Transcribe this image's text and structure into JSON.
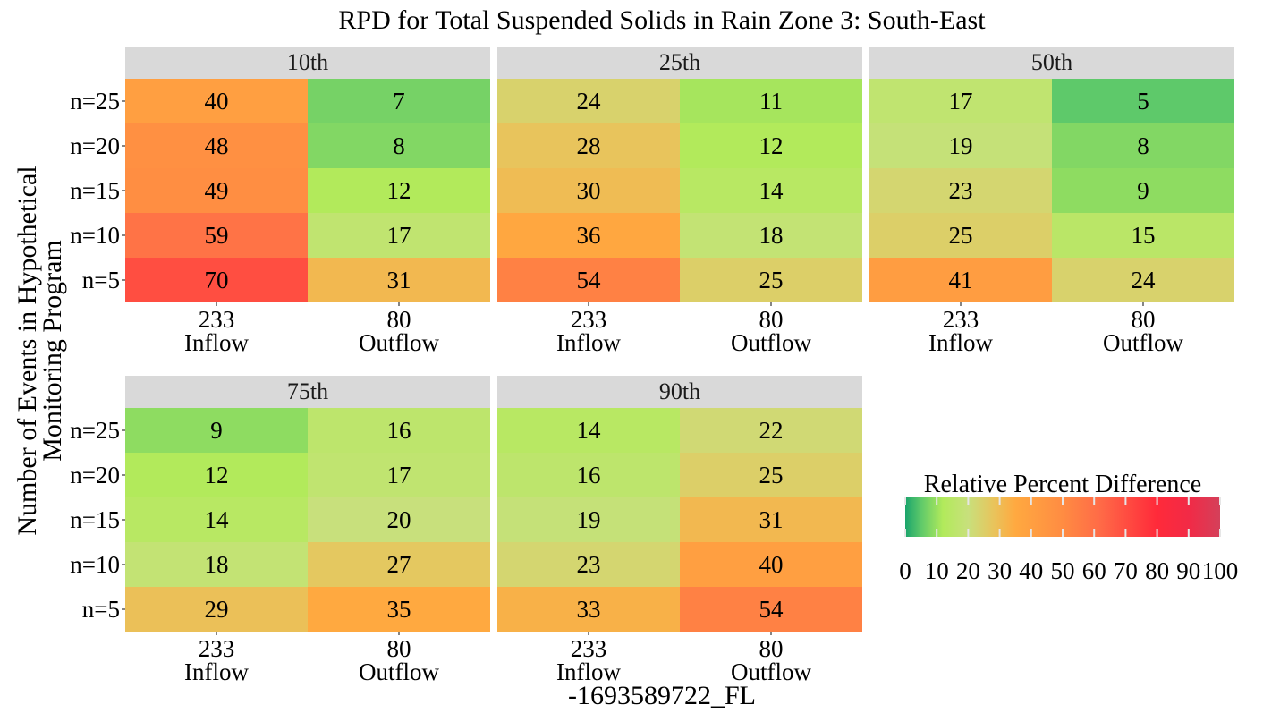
{
  "chart_data": {
    "type": "heatmap",
    "title": "RPD for Total Suspended Solids in Rain Zone 3: South-East",
    "xlabel": "-1693589722_FL",
    "ylabel_lines": [
      "Number of Events in Hypothetical",
      "Monitoring Program"
    ],
    "y_categories": [
      "n=25",
      "n=20",
      "n=15",
      "n=10",
      "n=5"
    ],
    "x_categories": [
      {
        "count": "233",
        "label": "Inflow"
      },
      {
        "count": "80",
        "label": "Outflow"
      }
    ],
    "facets": [
      {
        "label": "10th",
        "values": [
          [
            40,
            7
          ],
          [
            48,
            8
          ],
          [
            49,
            12
          ],
          [
            59,
            17
          ],
          [
            70,
            31
          ]
        ]
      },
      {
        "label": "25th",
        "values": [
          [
            24,
            11
          ],
          [
            28,
            12
          ],
          [
            30,
            14
          ],
          [
            36,
            18
          ],
          [
            54,
            25
          ]
        ]
      },
      {
        "label": "50th",
        "values": [
          [
            17,
            5
          ],
          [
            19,
            8
          ],
          [
            23,
            9
          ],
          [
            25,
            15
          ],
          [
            41,
            24
          ]
        ]
      },
      {
        "label": "75th",
        "values": [
          [
            9,
            16
          ],
          [
            12,
            17
          ],
          [
            14,
            20
          ],
          [
            18,
            27
          ],
          [
            29,
            35
          ]
        ]
      },
      {
        "label": "90th",
        "values": [
          [
            14,
            22
          ],
          [
            16,
            25
          ],
          [
            19,
            31
          ],
          [
            23,
            40
          ],
          [
            33,
            54
          ]
        ]
      }
    ],
    "legend": {
      "title": "Relative Percent Difference",
      "range": [
        0,
        100
      ],
      "ticks": [
        0,
        10,
        20,
        30,
        40,
        50,
        60,
        70,
        80,
        90,
        100
      ],
      "color_stops": [
        {
          "value": 0,
          "color": "#1aa46c"
        },
        {
          "value": 5,
          "color": "#5ec96a"
        },
        {
          "value": 12,
          "color": "#b2ea5b"
        },
        {
          "value": 20,
          "color": "#c8e07c"
        },
        {
          "value": 28,
          "color": "#e8c45c"
        },
        {
          "value": 35,
          "color": "#ffa940"
        },
        {
          "value": 50,
          "color": "#ff8c42"
        },
        {
          "value": 62,
          "color": "#ff6a47"
        },
        {
          "value": 80,
          "color": "#ff2a3a"
        },
        {
          "value": 90,
          "color": "#f22a46"
        },
        {
          "value": 100,
          "color": "#d4405a"
        }
      ]
    },
    "strip_color": "#d9d9d9"
  }
}
